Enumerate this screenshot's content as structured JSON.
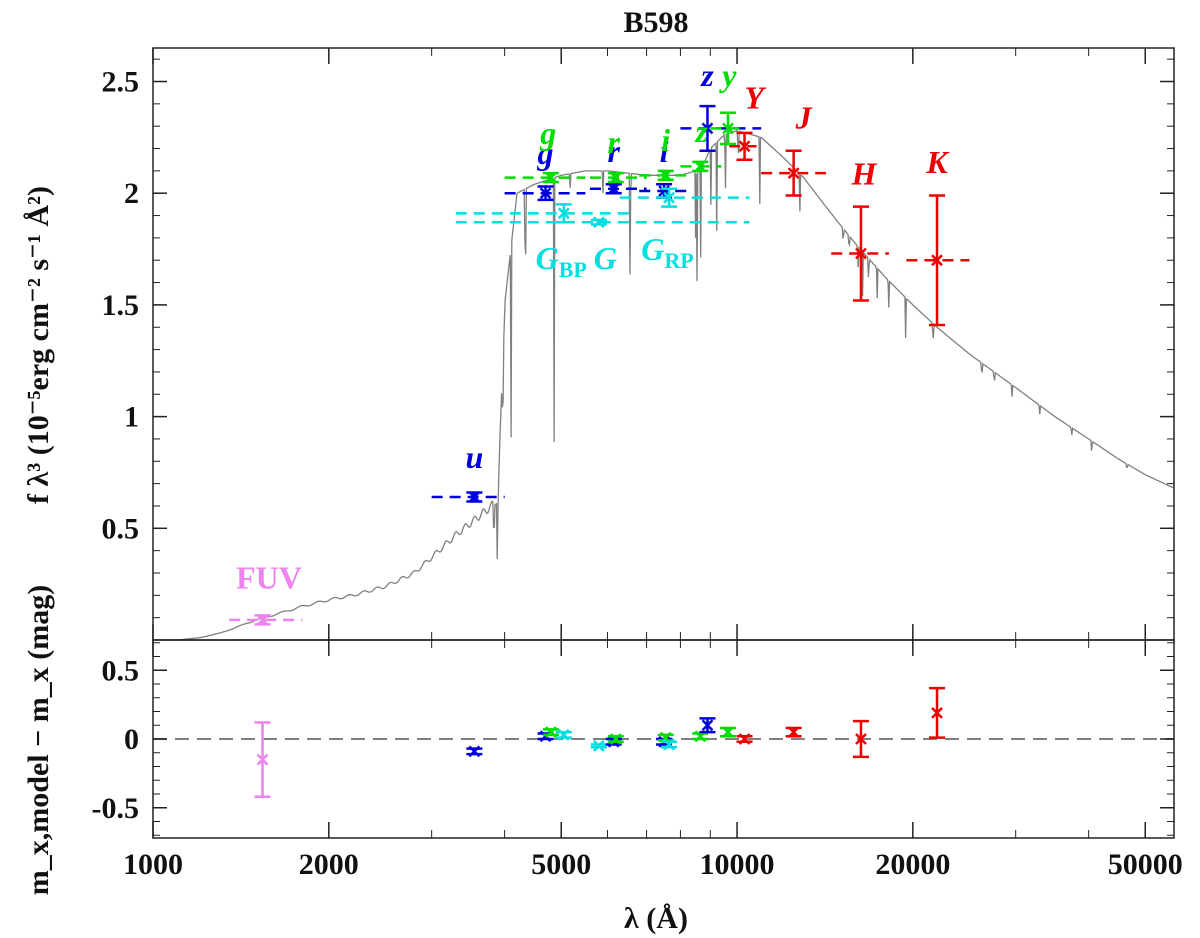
{
  "chart_data": [
    {
      "type": "scatter",
      "panel": "top",
      "title": "B598",
      "xlabel": "λ (Å)",
      "ylabel": "f λ³ (10⁻⁵erg cm⁻² s⁻¹ Å²)",
      "xscale": "log",
      "xlim": [
        1000,
        56000
      ],
      "ylim": [
        0,
        2.65
      ],
      "yticks": [
        "0.5",
        "1",
        "1.5",
        "2",
        "2.5"
      ],
      "grid": false,
      "bands": [
        {
          "label": "FUV",
          "color": "#ee82ee",
          "wl": 1540,
          "val": 0.09,
          "err": 0.02,
          "xmin": 1350,
          "xmax": 1800
        },
        {
          "label": "u",
          "color": "#0000dd",
          "wl": 3550,
          "val": 0.64,
          "err": 0.02,
          "xmin": 3000,
          "xmax": 4000
        },
        {
          "label": "g",
          "color": "#0000dd",
          "wl": 4700,
          "val": 2.0,
          "err": 0.03,
          "xmin": 4000,
          "xmax": 5500
        },
        {
          "label": "r",
          "color": "#0000dd",
          "wl": 6150,
          "val": 2.02,
          "err": 0.02,
          "xmin": 5600,
          "xmax": 7000
        },
        {
          "label": "i",
          "color": "#0000dd",
          "wl": 7500,
          "val": 2.01,
          "err": 0.03,
          "xmin": 6800,
          "xmax": 8400
        },
        {
          "label": "z",
          "color": "#0000dd",
          "wl": 8900,
          "val": 2.29,
          "err": 0.1,
          "xmin": 8000,
          "xmax": 11000
        },
        {
          "label": "g",
          "color": "#00dd00",
          "wl": 4800,
          "val": 2.07,
          "err": 0.02,
          "xmin": 4000,
          "xmax": 5500
        },
        {
          "label": "r",
          "color": "#00dd00",
          "wl": 6200,
          "val": 2.07,
          "err": 0.02,
          "xmin": 5600,
          "xmax": 7000
        },
        {
          "label": "i",
          "color": "#00dd00",
          "wl": 7550,
          "val": 2.08,
          "err": 0.02,
          "xmin": 6800,
          "xmax": 8400
        },
        {
          "label": "z",
          "color": "#00dd00",
          "wl": 8650,
          "val": 2.12,
          "err": 0.02,
          "xmin": 8000,
          "xmax": 9400
        },
        {
          "label": "y",
          "color": "#00dd00",
          "wl": 9650,
          "val": 2.29,
          "err": 0.07,
          "xmin": 9000,
          "xmax": 10300
        },
        {
          "label": "G_BP",
          "color": "#00e0e0",
          "wl": 5050,
          "val": 1.91,
          "err": 0.04,
          "xmin": 3300,
          "xmax": 6700
        },
        {
          "label": "G",
          "color": "#00e0e0",
          "wl": 5800,
          "val": 1.87,
          "err": 0.01,
          "xmin": 3300,
          "xmax": 10500
        },
        {
          "label": "G_RP",
          "color": "#00e0e0",
          "wl": 7650,
          "val": 1.98,
          "err": 0.04,
          "xmin": 6300,
          "xmax": 10500
        },
        {
          "label": "Y",
          "color": "#ee0000",
          "wl": 10300,
          "val": 2.21,
          "err": 0.06,
          "xmin": 9700,
          "xmax": 10800
        },
        {
          "label": "J",
          "color": "#ee0000",
          "wl": 12500,
          "val": 2.09,
          "err": 0.1,
          "xmin": 11000,
          "xmax": 14200
        },
        {
          "label": "H",
          "color": "#ee0000",
          "wl": 16300,
          "val": 1.73,
          "err": 0.21,
          "xmin": 14500,
          "xmax": 18200
        },
        {
          "label": "K",
          "color": "#ee0000",
          "wl": 22000,
          "val": 1.7,
          "err": 0.29,
          "xmin": 19500,
          "xmax": 25000
        }
      ],
      "band_labels": [
        {
          "text": "FUV",
          "color": "#ee82ee",
          "wl": 1580,
          "y": 0.23,
          "italic": false
        },
        {
          "text": "u",
          "color": "#0000dd",
          "wl": 3550,
          "y": 0.77,
          "italic": true
        },
        {
          "text": "g",
          "color": "#0000dd",
          "wl": 4700,
          "y": 2.13,
          "italic": true
        },
        {
          "text": "g",
          "color": "#00dd00",
          "wl": 4750,
          "y": 2.22,
          "italic": true
        },
        {
          "text": "r",
          "color": "#0000dd",
          "wl": 6150,
          "y": 2.14,
          "italic": true
        },
        {
          "text": "r",
          "color": "#00dd00",
          "wl": 6150,
          "y": 2.18,
          "italic": true
        },
        {
          "text": "i",
          "color": "#0000dd",
          "wl": 7500,
          "y": 2.14,
          "italic": true
        },
        {
          "text": "i",
          "color": "#00dd00",
          "wl": 7550,
          "y": 2.19,
          "italic": true
        },
        {
          "text": "z",
          "color": "#0000dd",
          "wl": 8900,
          "y": 2.48,
          "italic": true
        },
        {
          "text": "z",
          "color": "#00dd00",
          "wl": 8700,
          "y": 2.23,
          "italic": true
        },
        {
          "text": "y",
          "color": "#00dd00",
          "wl": 9700,
          "y": 2.48,
          "italic": true
        },
        {
          "text": "Y",
          "color": "#ee0000",
          "wl": 10700,
          "y": 2.38,
          "italic": true
        },
        {
          "text": "J",
          "color": "#ee0000",
          "wl": 13000,
          "y": 2.29,
          "italic": true
        },
        {
          "text": "H",
          "color": "#ee0000",
          "wl": 16500,
          "y": 2.04,
          "italic": true
        },
        {
          "text": "K",
          "color": "#ee0000",
          "wl": 22000,
          "y": 2.09,
          "italic": true
        }
      ],
      "cyan_labels": [
        {
          "main": "G",
          "sub": "BP",
          "color": "#00e0e0",
          "wl": 5000,
          "y": 1.66
        },
        {
          "main": "G",
          "sub": "",
          "color": "#00e0e0",
          "wl": 5950,
          "y": 1.66
        },
        {
          "main": "G",
          "sub": "RP",
          "color": "#00e0e0",
          "wl": 7600,
          "y": 1.7
        }
      ],
      "model_spectrum": {
        "color": "#808080",
        "x": [
          1000,
          1100,
          1200,
          1300,
          1400,
          1500,
          1600,
          1800,
          2000,
          2200,
          2500,
          2800,
          3000,
          3300,
          3600,
          3800,
          3900,
          4000,
          4200,
          4500,
          5000,
          5500,
          6000,
          6500,
          7000,
          7500,
          8000,
          8500,
          8800,
          9000,
          9500,
          10000,
          11000,
          12000,
          13000,
          14000,
          15000,
          16000,
          18000,
          20000,
          22000,
          25000,
          30000,
          35000,
          40000,
          45000,
          50000,
          56000
        ],
        "y": [
          0.0,
          0.0,
          0.01,
          0.03,
          0.06,
          0.09,
          0.11,
          0.15,
          0.18,
          0.2,
          0.24,
          0.3,
          0.37,
          0.47,
          0.55,
          0.6,
          0.64,
          1.5,
          2.0,
          2.04,
          2.08,
          2.1,
          2.1,
          2.09,
          2.08,
          2.08,
          2.08,
          2.1,
          2.14,
          2.2,
          2.26,
          2.28,
          2.25,
          2.16,
          2.07,
          1.96,
          1.86,
          1.77,
          1.62,
          1.5,
          1.4,
          1.28,
          1.13,
          1.0,
          0.9,
          0.81,
          0.74,
          0.68
        ]
      }
    },
    {
      "type": "scatter",
      "panel": "bottom",
      "ylabel": "m_x,model − m_x (mag)",
      "xscale": "log",
      "xlim": [
        1000,
        56000
      ],
      "ylim": [
        -0.72,
        0.72
      ],
      "yticks": [
        "-0.5",
        "0",
        "0.5"
      ],
      "xticks": [
        "1000",
        "2000",
        "5000",
        "10000",
        "20000",
        "50000"
      ],
      "zero_line": {
        "color": "#808080",
        "y": 0
      },
      "points": [
        {
          "label": "FUV",
          "color": "#ee82ee",
          "wl": 1540,
          "val": -0.15,
          "err": 0.27
        },
        {
          "label": "u",
          "color": "#0000dd",
          "wl": 3550,
          "val": -0.09,
          "err": 0.02
        },
        {
          "label": "g",
          "color": "#0000dd",
          "wl": 4700,
          "val": 0.02,
          "err": 0.02
        },
        {
          "label": "g",
          "color": "#00dd00",
          "wl": 4800,
          "val": 0.05,
          "err": 0.02
        },
        {
          "label": "G_BP",
          "color": "#00e0e0",
          "wl": 5050,
          "val": 0.03,
          "err": 0.02
        },
        {
          "label": "G",
          "color": "#00e0e0",
          "wl": 5800,
          "val": -0.05,
          "err": 0.01
        },
        {
          "label": "r",
          "color": "#0000dd",
          "wl": 6150,
          "val": -0.02,
          "err": 0.02
        },
        {
          "label": "r",
          "color": "#00dd00",
          "wl": 6200,
          "val": 0.0,
          "err": 0.02
        },
        {
          "label": "i",
          "color": "#0000dd",
          "wl": 7500,
          "val": -0.02,
          "err": 0.02
        },
        {
          "label": "i",
          "color": "#00dd00",
          "wl": 7550,
          "val": 0.01,
          "err": 0.02
        },
        {
          "label": "G_RP",
          "color": "#00e0e0",
          "wl": 7650,
          "val": -0.04,
          "err": 0.02
        },
        {
          "label": "z",
          "color": "#00dd00",
          "wl": 8650,
          "val": 0.02,
          "err": 0.02
        },
        {
          "label": "z",
          "color": "#0000dd",
          "wl": 8900,
          "val": 0.1,
          "err": 0.05
        },
        {
          "label": "y",
          "color": "#00dd00",
          "wl": 9650,
          "val": 0.05,
          "err": 0.03
        },
        {
          "label": "Y",
          "color": "#ee0000",
          "wl": 10300,
          "val": 0.0,
          "err": 0.02
        },
        {
          "label": "J",
          "color": "#ee0000",
          "wl": 12500,
          "val": 0.05,
          "err": 0.03
        },
        {
          "label": "H",
          "color": "#ee0000",
          "wl": 16300,
          "val": 0.0,
          "err": 0.13
        },
        {
          "label": "K",
          "color": "#ee0000",
          "wl": 22000,
          "val": 0.19,
          "err": 0.18
        }
      ]
    }
  ]
}
